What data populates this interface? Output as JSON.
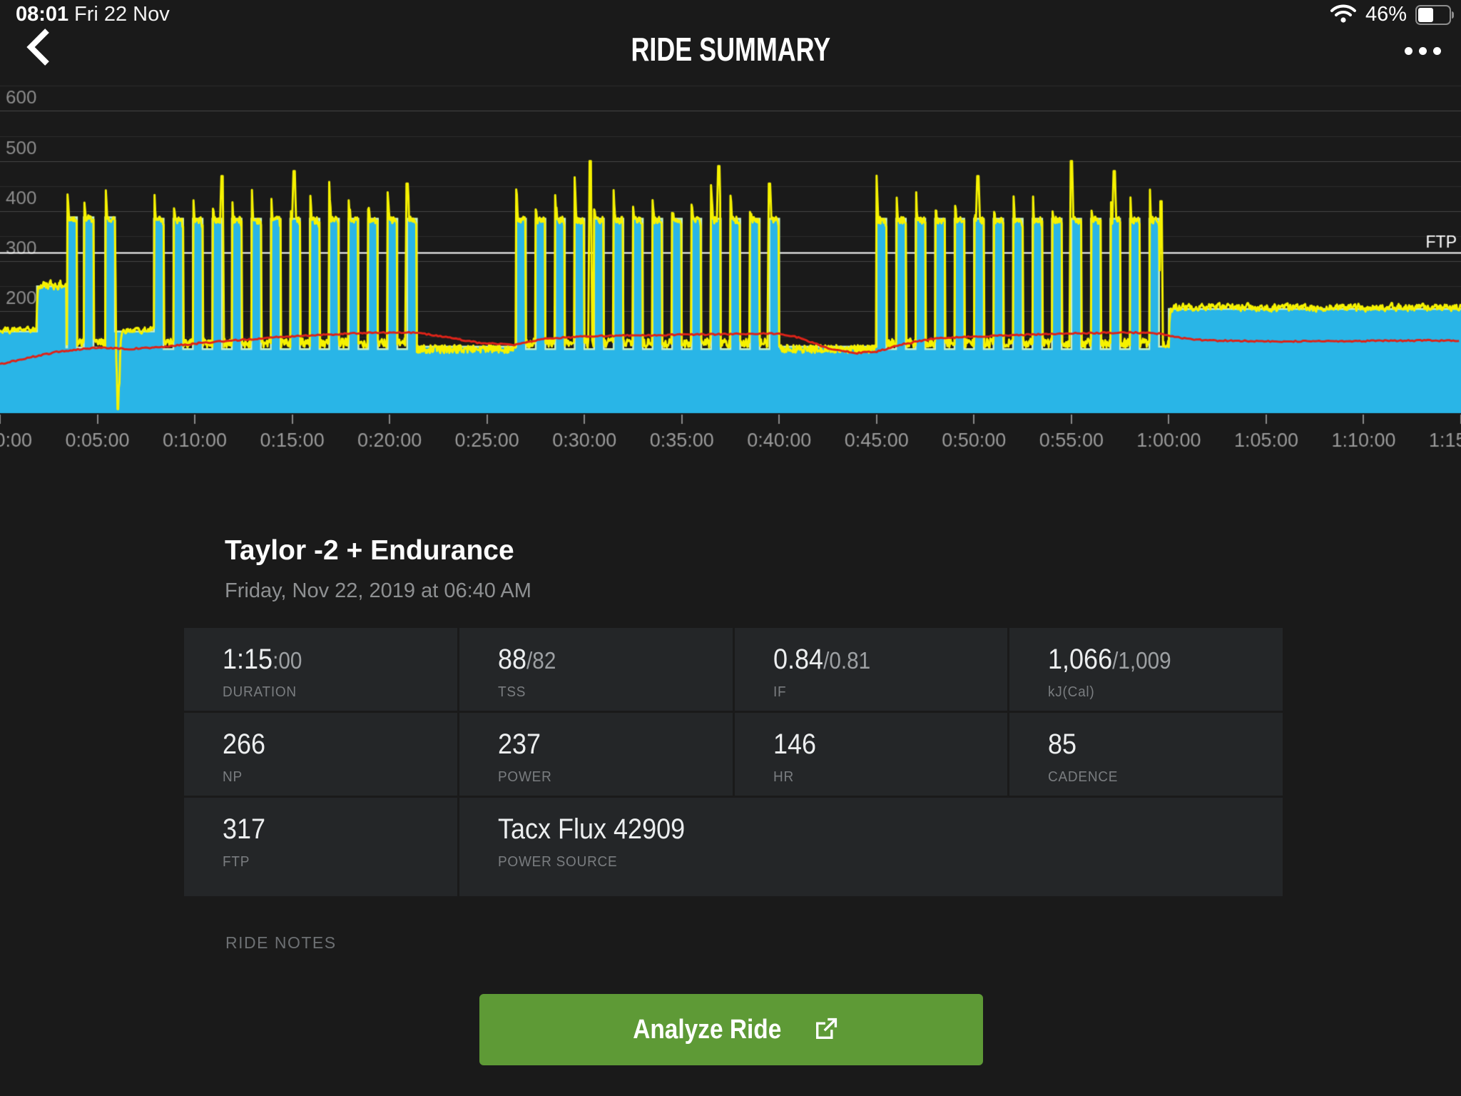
{
  "status_bar": {
    "time": "08:01",
    "date": "Fri 22 Nov",
    "battery_percent": "46%",
    "battery_level": 0.46
  },
  "header": {
    "title": "RIDE SUMMARY"
  },
  "ride": {
    "title": "Taylor -2 + Endurance",
    "datetime": "Friday, Nov 22, 2019 at 06:40 AM"
  },
  "ride_notes_label": "RIDE NOTES",
  "analyze_button": {
    "label": "Analyze Ride",
    "color": "#5E9A36"
  },
  "chart_data": {
    "type": "area",
    "title": "",
    "x_axis": {
      "unit": "h:mm:ss",
      "min_minutes": 0,
      "max_minutes": 75,
      "ticks": [
        "0:00:00",
        "0:05:00",
        "0:10:00",
        "0:15:00",
        "0:20:00",
        "0:25:00",
        "0:30:00",
        "0:35:00",
        "0:40:00",
        "0:45:00",
        "0:50:00",
        "0:55:00",
        "1:00:00",
        "1:05:00",
        "1:10:00",
        "1:15:00"
      ]
    },
    "y_axis": {
      "unit": "watts",
      "labels": [
        200,
        300,
        400,
        500,
        600
      ],
      "grid_step": 50,
      "min": 0,
      "max": 675,
      "grid": true
    },
    "ftp_line": {
      "value": 317,
      "label": "FTP",
      "color": "#ffffff"
    },
    "colors": {
      "target_power_fill": "#29B5E7",
      "target_power_edge": "#C7EFC3",
      "actual_power": "#F6F200",
      "heart_rate": "#DD2318",
      "grid_major": "#474747",
      "grid_minor": "#2c2c2c",
      "axis_text": "#9b9b9b",
      "y_label_text": "#8d8d8d"
    },
    "series": {
      "target_power": {
        "name": "Workout Target Power (W)",
        "segments": [
          [
            0,
            1.9,
            160
          ],
          [
            1.9,
            3.4,
            250
          ],
          [
            3.4,
            3.45,
            128
          ],
          [
            3.45,
            3.95,
            388
          ],
          [
            3.95,
            4.3,
            128
          ],
          [
            4.3,
            4.8,
            388
          ],
          [
            4.8,
            5.4,
            128
          ],
          [
            5.4,
            5.9,
            388
          ],
          [
            5.9,
            7.9,
            160
          ],
          [
            21.4,
            26.5,
            130
          ],
          [
            40.0,
            45.0,
            130
          ],
          [
            59.5,
            60.0,
            130
          ],
          [
            60.0,
            75.0,
            205
          ]
        ],
        "interval_sets": [
          {
            "start": 7.9,
            "count": 14,
            "pitch_min": 1.0,
            "on_min": 0.5,
            "on_watts": 385,
            "off_watts": 125
          },
          {
            "start": 26.5,
            "count": 14,
            "pitch_min": 1.0,
            "on_min": 0.5,
            "on_watts": 385,
            "off_watts": 125
          },
          {
            "start": 45.0,
            "count": 15,
            "pitch_min": 1.0,
            "on_min": 0.5,
            "on_watts": 385,
            "off_watts": 125
          }
        ]
      },
      "actual_power": {
        "name": "Actual Power (W)",
        "follows": "target_power",
        "noise_watts": 8,
        "spikes": [
          [
            6.05,
            5
          ],
          [
            11.4,
            470
          ],
          [
            15.1,
            480
          ],
          [
            20.9,
            455
          ],
          [
            30.3,
            500
          ],
          [
            36.9,
            490
          ],
          [
            39.5,
            455
          ],
          [
            50.2,
            470
          ],
          [
            55.0,
            500
          ],
          [
            57.2,
            480
          ],
          [
            59.6,
            420
          ]
        ]
      },
      "heart_rate": {
        "name": "Heart Rate (bpm)",
        "points": [
          [
            0,
            95
          ],
          [
            1.5,
            108
          ],
          [
            3,
            120
          ],
          [
            5,
            128
          ],
          [
            6.5,
            125
          ],
          [
            8,
            128
          ],
          [
            10,
            136
          ],
          [
            12,
            142
          ],
          [
            14,
            148
          ],
          [
            16,
            152
          ],
          [
            18,
            156
          ],
          [
            20,
            158
          ],
          [
            21.4,
            158
          ],
          [
            23,
            148
          ],
          [
            24.5,
            138
          ],
          [
            26.4,
            133
          ],
          [
            28,
            146
          ],
          [
            30,
            150
          ],
          [
            32,
            152
          ],
          [
            34,
            153
          ],
          [
            36,
            154
          ],
          [
            38,
            155
          ],
          [
            39.9,
            156
          ],
          [
            41,
            148
          ],
          [
            42.5,
            126
          ],
          [
            44,
            117
          ],
          [
            45,
            120
          ],
          [
            46.5,
            136
          ],
          [
            48,
            146
          ],
          [
            50,
            150
          ],
          [
            52,
            153
          ],
          [
            54,
            155
          ],
          [
            56,
            157
          ],
          [
            58,
            158
          ],
          [
            59.5,
            156
          ],
          [
            60.8,
            146
          ],
          [
            62,
            142
          ],
          [
            64,
            141
          ],
          [
            66,
            140
          ],
          [
            68,
            141
          ],
          [
            70,
            141
          ],
          [
            72,
            142
          ],
          [
            74,
            142
          ],
          [
            75,
            141
          ]
        ]
      }
    }
  },
  "stats": {
    "rows": [
      [
        {
          "primary": "1:15",
          "secondary": ":00",
          "label": "DURATION"
        },
        {
          "primary": "88",
          "secondary": "/82",
          "label": "TSS"
        },
        {
          "primary": "0.84",
          "secondary": "/0.81",
          "label": "IF"
        },
        {
          "primary": "1,066",
          "secondary": "/1,009",
          "label": "kJ(Cal)"
        }
      ],
      [
        {
          "primary": "266",
          "label": "NP"
        },
        {
          "primary": "237",
          "label": "POWER"
        },
        {
          "primary": "146",
          "label": "HR"
        },
        {
          "primary": "85",
          "label": "CADENCE"
        }
      ],
      [
        {
          "primary": "317",
          "label": "FTP"
        },
        {
          "primary": "Tacx Flux 42909",
          "label": "POWER SOURCE"
        }
      ]
    ]
  }
}
